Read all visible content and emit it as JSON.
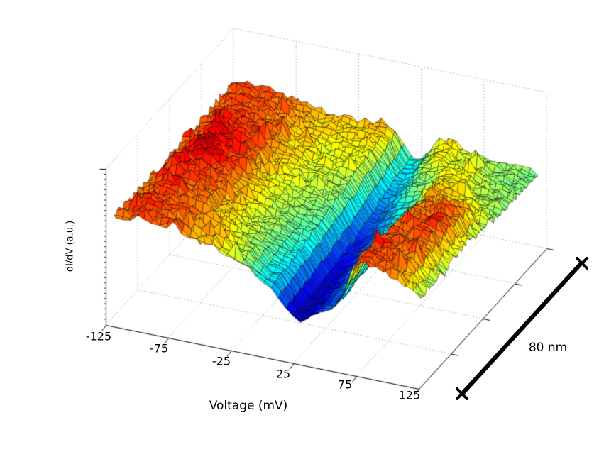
{
  "figure": {
    "background": "#ffffff",
    "x_axis": {
      "title": "Voltage (mV)",
      "tick_labels": [
        "-125",
        "-75",
        "-25",
        "25",
        "75",
        "125"
      ]
    },
    "z_axis": {
      "title": "dI/dV (a.u.)"
    },
    "scale_bar": {
      "label": "80 nm",
      "color": "#000000"
    }
  },
  "chart_data": {
    "type": "surface",
    "title": "",
    "xlabel": "Voltage (mV)",
    "zlabel": "dI/dV (a.u.)",
    "x_range": [
      -125,
      125
    ],
    "x_ticks": [
      -125,
      -75,
      -25,
      25,
      75,
      125
    ],
    "position_range_nm": [
      0,
      80
    ],
    "position_tick_step_nm": 20,
    "scale_bar_label": "80 nm",
    "colormap": "jet",
    "grid_on": true,
    "surface_grid": {
      "voltage_mV": [
        -125,
        -100,
        -75,
        -50,
        -25,
        0,
        25,
        50,
        75,
        100,
        125
      ],
      "position_nm": [
        0,
        10,
        20,
        30,
        40,
        50,
        60,
        70,
        80
      ],
      "dIdV_au": [
        [
          0.74,
          0.8,
          0.78,
          0.7,
          0.58,
          0.33,
          0.05,
          0.2,
          0.8,
          0.74,
          0.52
        ],
        [
          0.76,
          0.82,
          0.77,
          0.68,
          0.56,
          0.36,
          0.05,
          0.22,
          0.82,
          0.76,
          0.54
        ],
        [
          0.74,
          0.81,
          0.76,
          0.65,
          0.55,
          0.4,
          0.07,
          0.26,
          0.8,
          0.78,
          0.55
        ],
        [
          0.73,
          0.84,
          0.78,
          0.64,
          0.55,
          0.45,
          0.1,
          0.3,
          0.76,
          0.82,
          0.58
        ],
        [
          0.74,
          0.92,
          0.84,
          0.65,
          0.56,
          0.5,
          0.14,
          0.34,
          0.73,
          0.78,
          0.56
        ],
        [
          0.75,
          0.88,
          0.82,
          0.66,
          0.58,
          0.55,
          0.2,
          0.4,
          0.7,
          0.62,
          0.52
        ],
        [
          0.76,
          0.82,
          0.78,
          0.66,
          0.6,
          0.6,
          0.28,
          0.5,
          0.66,
          0.55,
          0.5
        ],
        [
          0.77,
          0.8,
          0.76,
          0.66,
          0.64,
          0.67,
          0.34,
          0.62,
          0.58,
          0.52,
          0.5
        ],
        [
          0.78,
          0.8,
          0.76,
          0.68,
          0.68,
          0.73,
          0.38,
          0.66,
          0.54,
          0.52,
          0.5
        ]
      ]
    }
  }
}
